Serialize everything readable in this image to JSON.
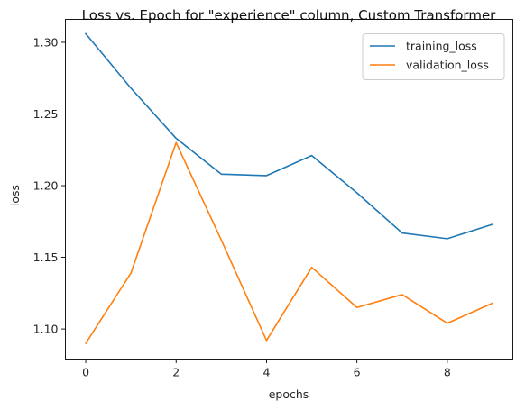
{
  "chart_data": {
    "type": "line",
    "title": "Loss vs. Epoch for \"experience\" column, Custom Transformer",
    "xlabel": "epochs",
    "ylabel": "loss",
    "x": [
      0,
      1,
      2,
      3,
      4,
      5,
      6,
      7,
      8,
      9
    ],
    "xlim": [
      -0.45,
      9.45
    ],
    "ylim": [
      1.079,
      1.316
    ],
    "xticks": [
      0,
      2,
      4,
      6,
      8
    ],
    "yticks": [
      1.1,
      1.15,
      1.2,
      1.25,
      1.3
    ],
    "xtick_labels": [
      "0",
      "2",
      "4",
      "6",
      "8"
    ],
    "ytick_labels": [
      "1.10",
      "1.15",
      "1.20",
      "1.25",
      "1.30"
    ],
    "grid": false,
    "legend_position": "top-right",
    "series": [
      {
        "name": "training_loss",
        "color": "#1f77b4",
        "values": [
          1.306,
          1.268,
          1.233,
          1.208,
          1.207,
          1.221,
          1.195,
          1.167,
          1.163,
          1.173
        ]
      },
      {
        "name": "validation_loss",
        "color": "#ff7f0e",
        "values": [
          1.09,
          1.139,
          1.23,
          1.162,
          1.092,
          1.143,
          1.115,
          1.124,
          1.104,
          1.118
        ]
      }
    ]
  }
}
